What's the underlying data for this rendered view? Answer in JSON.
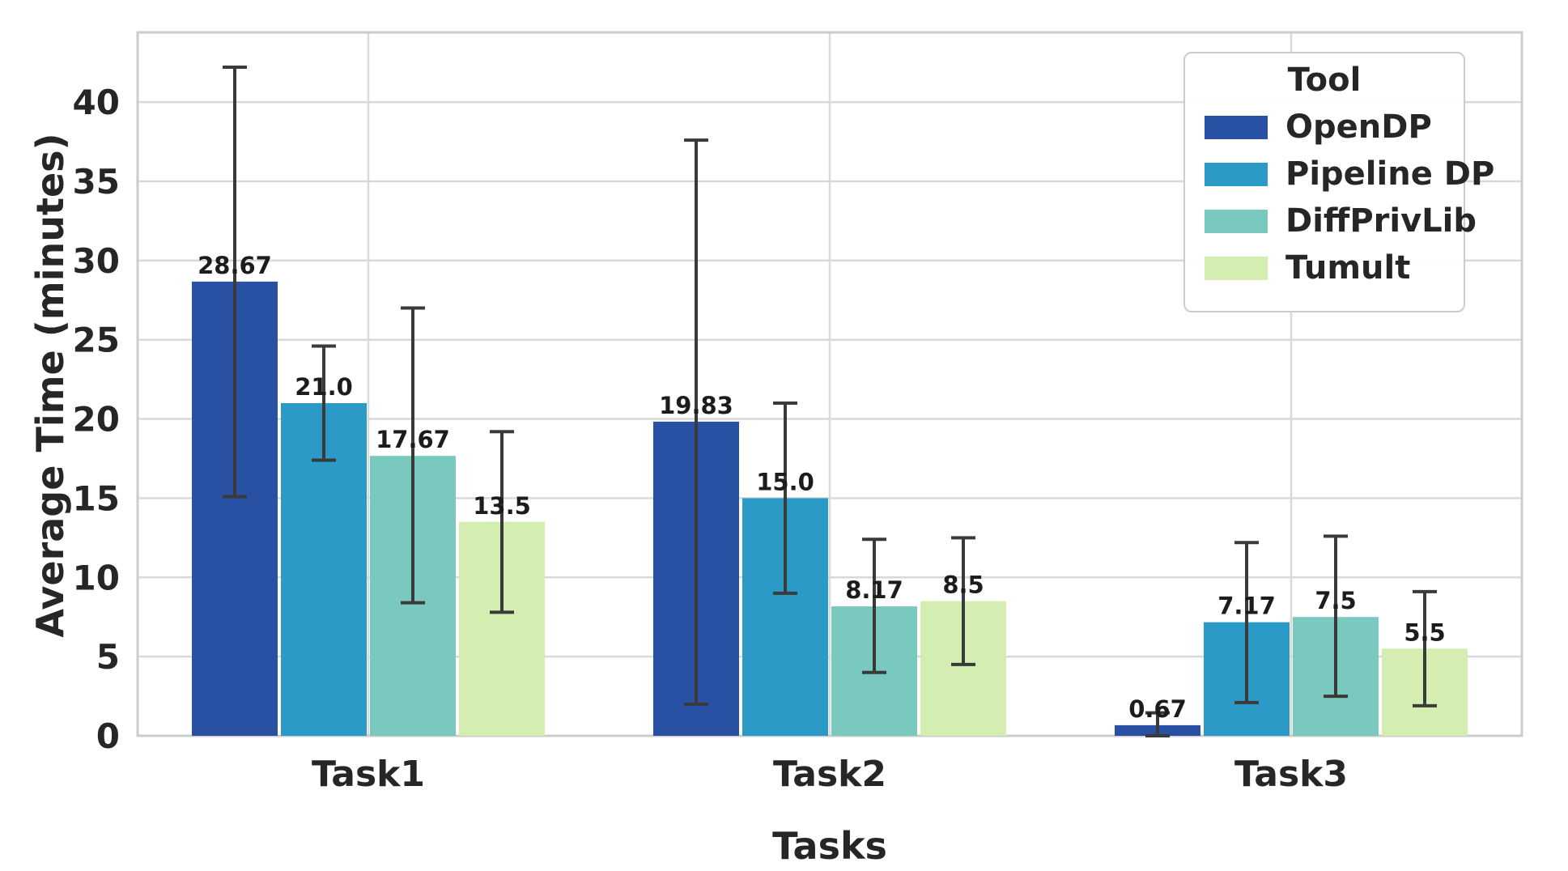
{
  "figure": {
    "background": "#ffffff",
    "text_color": "#262626",
    "grid_color": "#d9d9d9",
    "spine_color": "#cccccc",
    "errorbar_color": "#3a3a3a",
    "bar_label_color": "#1c1c1c"
  },
  "chart_data": {
    "type": "bar",
    "title": "",
    "xlabel": "Tasks",
    "ylabel": "Average Time (minutes)",
    "categories": [
      "Task1",
      "Task2",
      "Task3"
    ],
    "yticks": [
      0,
      5,
      10,
      15,
      20,
      25,
      30,
      35,
      40
    ],
    "ylim": [
      0,
      44.4
    ],
    "grid": true,
    "legend_title": "Tool",
    "legend_position": "upper right",
    "series": [
      {
        "name": "OpenDP",
        "color": "#2850a3",
        "values": [
          28.67,
          19.83,
          0.67
        ],
        "labels": [
          "28.67",
          "19.83",
          "0.67"
        ],
        "error_low": [
          15.1,
          2.0,
          0.0
        ],
        "error_high": [
          42.2,
          37.6,
          1.45
        ]
      },
      {
        "name": "Pipeline DP",
        "color": "#2b9ac6",
        "values": [
          21.0,
          15.0,
          7.17
        ],
        "labels": [
          "21.0",
          "15.0",
          "7.17"
        ],
        "error_low": [
          17.4,
          9.0,
          2.1
        ],
        "error_high": [
          24.6,
          21.0,
          12.2
        ]
      },
      {
        "name": "DiffPrivLib",
        "color": "#7ac9be",
        "values": [
          17.67,
          8.17,
          7.5
        ],
        "labels": [
          "17.67",
          "8.17",
          "7.5"
        ],
        "error_low": [
          8.4,
          4.0,
          2.5
        ],
        "error_high": [
          27.0,
          12.4,
          12.6
        ]
      },
      {
        "name": "Tumult",
        "color": "#d4edb0",
        "values": [
          13.5,
          8.5,
          5.5
        ],
        "labels": [
          "13.5",
          "8.5",
          "5.5"
        ],
        "error_low": [
          7.8,
          4.5,
          1.9
        ],
        "error_high": [
          19.2,
          12.5,
          9.1
        ]
      }
    ]
  }
}
